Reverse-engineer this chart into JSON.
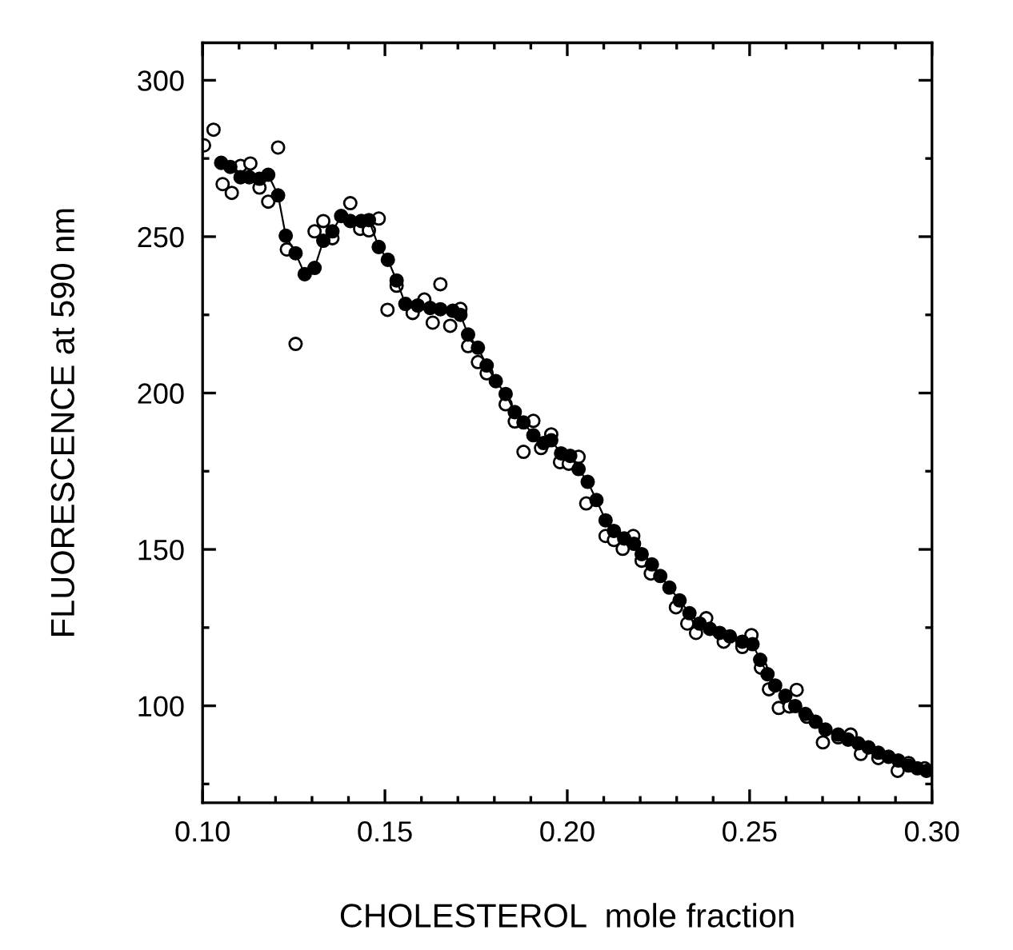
{
  "chart_data": {
    "type": "line",
    "xlabel": "CHOLESTEROL  mole fraction",
    "ylabel": "FLUORESCENCE at 590 nm",
    "xlim": [
      0.1,
      0.3
    ],
    "ylim": [
      69,
      312
    ],
    "xticks": [
      {
        "value": 0.1,
        "label": "0.10"
      },
      {
        "value": 0.11,
        "label": null
      },
      {
        "value": 0.12,
        "label": null
      },
      {
        "value": 0.13,
        "label": null
      },
      {
        "value": 0.14,
        "label": null
      },
      {
        "value": 0.15,
        "label": "0.15"
      },
      {
        "value": 0.16,
        "label": null
      },
      {
        "value": 0.17,
        "label": null
      },
      {
        "value": 0.18,
        "label": null
      },
      {
        "value": 0.19,
        "label": null
      },
      {
        "value": 0.2,
        "label": "0.20"
      },
      {
        "value": 0.21,
        "label": null
      },
      {
        "value": 0.22,
        "label": null
      },
      {
        "value": 0.23,
        "label": null
      },
      {
        "value": 0.24,
        "label": null
      },
      {
        "value": 0.25,
        "label": "0.25"
      },
      {
        "value": 0.26,
        "label": null
      },
      {
        "value": 0.27,
        "label": null
      },
      {
        "value": 0.28,
        "label": null
      },
      {
        "value": 0.29,
        "label": null
      },
      {
        "value": 0.3,
        "label": "0.30"
      }
    ],
    "yticks": [
      {
        "value": 75,
        "label": null
      },
      100,
      {
        "value": 125,
        "label": null
      },
      150,
      {
        "value": 175,
        "label": null
      },
      200,
      {
        "value": 225,
        "label": null
      },
      250,
      {
        "value": 275,
        "label": null
      },
      300
    ],
    "grid": false,
    "series": [
      {
        "type": "scatter",
        "marker": "circle",
        "color": "#000000",
        "x": [
          0.1004,
          0.103,
          0.1055,
          0.108,
          0.1104,
          0.1131,
          0.1156,
          0.118,
          0.1207,
          0.1231,
          0.1255,
          0.1307,
          0.1331,
          0.1356,
          0.1405,
          0.1432,
          0.1456,
          0.1483,
          0.1507,
          0.1532,
          0.1576,
          0.1608,
          0.1631,
          0.1652,
          0.1679,
          0.1707,
          0.1728,
          0.1755,
          0.1779,
          0.1831,
          0.1856,
          0.188,
          0.1907,
          0.1928,
          0.1956,
          0.198,
          0.2004,
          0.2031,
          0.2052,
          0.2105,
          0.2128,
          0.2152,
          0.2181,
          0.2204,
          0.2229,
          0.2298,
          0.2329,
          0.2353,
          0.2381,
          0.2429,
          0.248,
          0.2505,
          0.2531,
          0.2553,
          0.258,
          0.2609,
          0.2629,
          0.2657,
          0.2701,
          0.2743,
          0.2777,
          0.2805,
          0.2853,
          0.2906,
          0.2936,
          0.298
        ],
        "values": [
          279.2,
          284.2,
          266.8,
          264,
          272.6,
          273.4,
          265.7,
          261.2,
          278.5,
          245.9,
          215.7,
          251.7,
          255,
          249.5,
          260.7,
          252.5,
          252,
          255.8,
          226.6,
          234.3,
          225.6,
          229.9,
          222.5,
          234.8,
          221.5,
          226.9,
          215,
          209.9,
          206.3,
          196.4,
          190.9,
          181.2,
          191.1,
          182.4,
          186.8,
          177.9,
          177.4,
          179.6,
          164.7,
          154.3,
          153,
          150.2,
          154.3,
          146.4,
          142.3,
          131.5,
          126.3,
          123.3,
          128,
          120.5,
          118.8,
          122.6,
          112.2,
          105.3,
          99.3,
          99.8,
          105.1,
          96.5,
          88.3,
          89.9,
          90.8,
          84.6,
          83.3,
          79.2,
          81.7,
          80
        ]
      },
      {
        "marker": "circle",
        "line_style": "solid",
        "color": "#000000",
        "x": [
          0.1051,
          0.1076,
          0.1104,
          0.1128,
          0.1156,
          0.118,
          0.1207,
          0.1228,
          0.1255,
          0.128,
          0.1307,
          0.1331,
          0.1356,
          0.138,
          0.1405,
          0.1435,
          0.1456,
          0.1483,
          0.1508,
          0.1532,
          0.1556,
          0.159,
          0.1624,
          0.1652,
          0.1686,
          0.1707,
          0.1728,
          0.1755,
          0.1779,
          0.1804,
          0.1831,
          0.1856,
          0.188,
          0.1907,
          0.1935,
          0.1956,
          0.1983,
          0.2008,
          0.2031,
          0.2056,
          0.208,
          0.2105,
          0.2128,
          0.2156,
          0.2183,
          0.2204,
          0.2232,
          0.2255,
          0.228,
          0.2308,
          0.2335,
          0.2363,
          0.2391,
          0.2418,
          0.2446,
          0.248,
          0.2508,
          0.2529,
          0.2549,
          0.257,
          0.2598,
          0.2625,
          0.2653,
          0.2681,
          0.2708,
          0.2743,
          0.277,
          0.2798,
          0.2826,
          0.2853,
          0.2881,
          0.2908,
          0.2936,
          0.296,
          0.2985
        ],
        "values": [
          273.6,
          272.3,
          269,
          269,
          268.5,
          269.8,
          263.2,
          250.3,
          244.7,
          238,
          240,
          248.7,
          251.7,
          256.6,
          255,
          255,
          255.3,
          246.7,
          242.6,
          236,
          228.5,
          228,
          227.2,
          226.8,
          226.3,
          225,
          218.7,
          214.5,
          208.8,
          203.8,
          199.7,
          193.9,
          190.6,
          186.5,
          184,
          184.9,
          180.7,
          179.9,
          175.7,
          171.6,
          165.8,
          159.3,
          155.9,
          153.5,
          151.8,
          148.5,
          145.2,
          141.5,
          137.8,
          133.7,
          129.6,
          126.3,
          124.6,
          123.3,
          122.2,
          120.5,
          119.7,
          114.7,
          110.1,
          106.5,
          103.2,
          99.9,
          97.4,
          94.9,
          92.4,
          90.8,
          89.2,
          88,
          86.7,
          85,
          83.7,
          82.5,
          80.9,
          80,
          79.2
        ]
      }
    ]
  }
}
